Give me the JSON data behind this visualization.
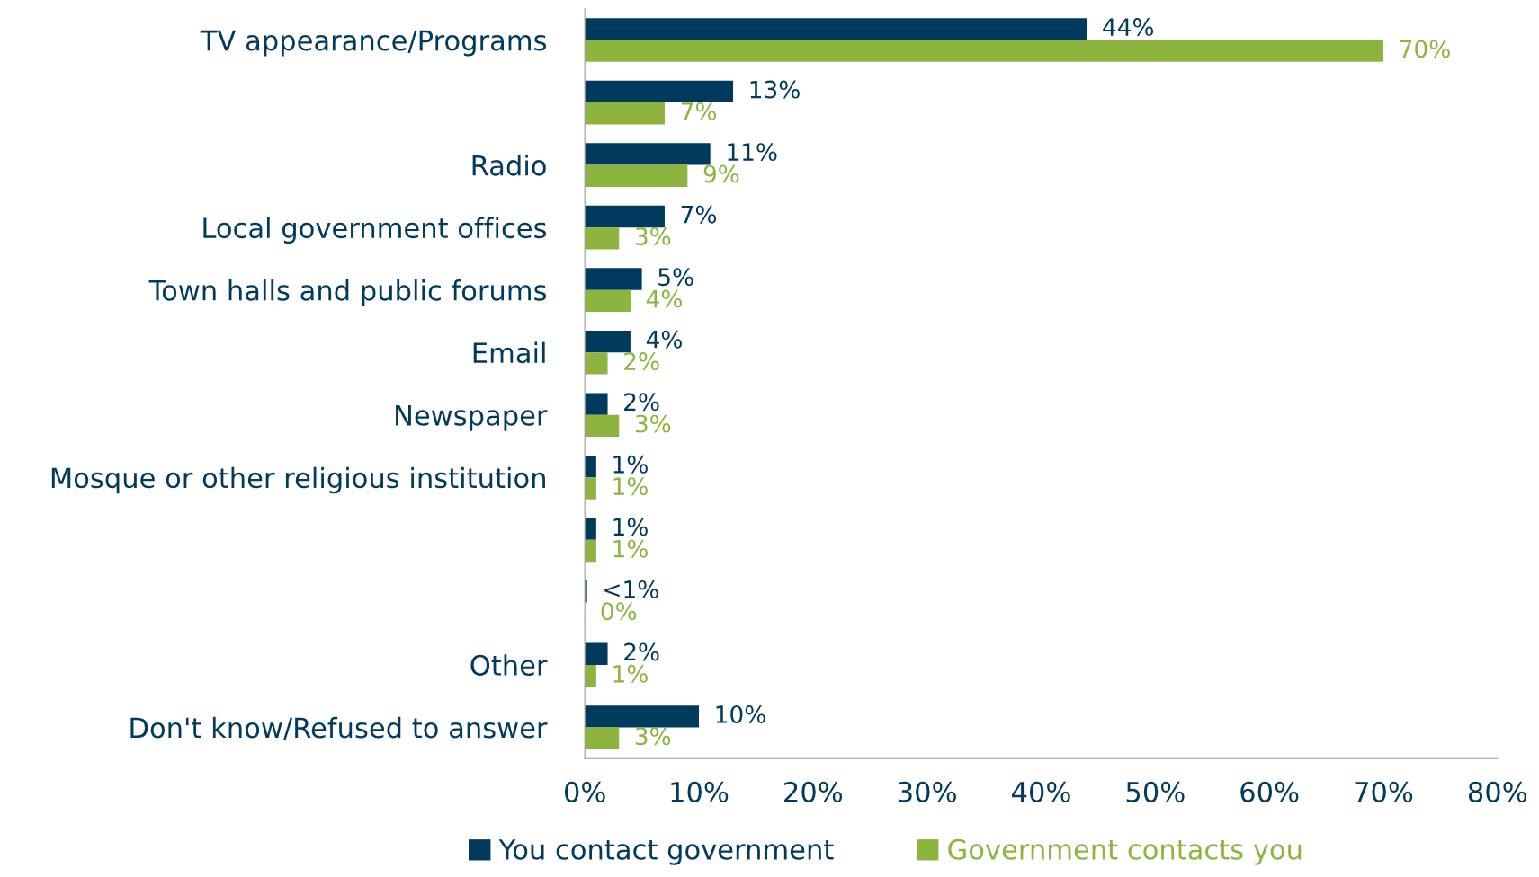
{
  "chart_data": {
    "type": "bar",
    "orientation": "horizontal",
    "categories": [
      "TV appearance/Programs",
      null,
      "Radio",
      "Local government offices",
      "Town halls and public forums",
      "Email",
      "Newspaper",
      "Mosque or other religious institution",
      null,
      null,
      "Other",
      "Don't know/Refused to answer"
    ],
    "series": [
      {
        "name": "You contact government",
        "color": "#003a5c",
        "values": [
          44,
          13,
          11,
          7,
          5,
          4,
          2,
          1,
          1,
          0.2,
          2,
          10
        ],
        "value_labels": [
          "44%",
          "13%",
          "11%",
          "7%",
          "5%",
          "4%",
          "2%",
          "1%",
          "1%",
          "<1%",
          "2%",
          "10%"
        ]
      },
      {
        "name": "Government contacts you",
        "color": "#8db43e",
        "values": [
          70,
          7,
          9,
          3,
          4,
          2,
          3,
          1,
          1,
          0,
          1,
          3
        ],
        "value_labels": [
          "70%",
          "7%",
          "9%",
          "3%",
          "4%",
          "2%",
          "3%",
          "1%",
          "1%",
          "0%",
          "1%",
          "3%"
        ]
      }
    ],
    "xlim": [
      0,
      80
    ],
    "xticks": [
      {
        "value": 0,
        "label": "0%"
      },
      {
        "value": 10,
        "label": "10%"
      },
      {
        "value": 20,
        "label": "20%"
      },
      {
        "value": 30,
        "label": "30%"
      },
      {
        "value": 40,
        "label": "40%"
      },
      {
        "value": 50,
        "label": "50%"
      },
      {
        "value": 60,
        "label": "60%"
      },
      {
        "value": 70,
        "label": "70%"
      },
      {
        "value": 80,
        "label": "80%"
      }
    ],
    "grid": false,
    "legend": "bottom"
  }
}
